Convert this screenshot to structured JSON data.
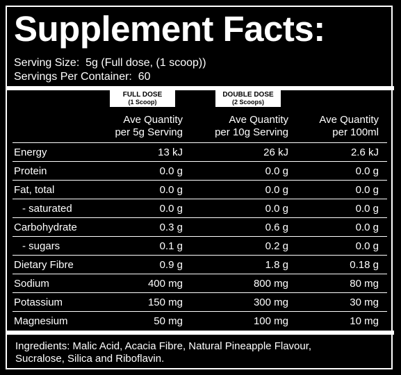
{
  "title": "Supplement Facts:",
  "serving_size": "Serving Size:  5g (Full dose, (1 scoop))",
  "servings_per_container": "Servings Per Container:  60",
  "badges": [
    [
      "FULL DOSE",
      "(1 Scoop)"
    ],
    [
      "DOUBLE DOSE",
      "(2 Scoops)"
    ],
    null
  ],
  "columns": [
    [
      "Ave Quantity",
      "per 5g Serving"
    ],
    [
      "Ave Quantity",
      "per 10g Serving"
    ],
    [
      "Ave Quantity",
      "per 100ml"
    ]
  ],
  "rows": [
    [
      "Energy",
      "13 kJ",
      "26 kJ",
      "2.6 kJ"
    ],
    [
      "Protein",
      "0.0 g",
      "0.0 g",
      "0.0 g"
    ],
    [
      "Fat, total",
      "0.0 g",
      "0.0 g",
      "0.0 g"
    ],
    [
      "- saturated",
      "0.0 g",
      "0.0 g",
      "0.0 g"
    ],
    [
      "Carbohydrate",
      "0.3 g",
      "0.6 g",
      "0.0 g"
    ],
    [
      "- sugars",
      "0.1 g",
      "0.2 g",
      "0.0 g"
    ],
    [
      "Dietary Fibre",
      "0.9 g",
      "1.8 g",
      "0.18 g"
    ],
    [
      "Sodium",
      "400 mg",
      "800 mg",
      "80 mg"
    ],
    [
      "Potassium",
      "150 mg",
      "300 mg",
      "30 mg"
    ],
    [
      "Magnesium",
      "50 mg",
      "100 mg",
      "10 mg"
    ]
  ],
  "ingredients": [
    "Ingredients: Malic Acid, Acacia Fibre, Natural Pineapple Flavour,",
    "Sucralose, Silica and Riboflavin."
  ]
}
